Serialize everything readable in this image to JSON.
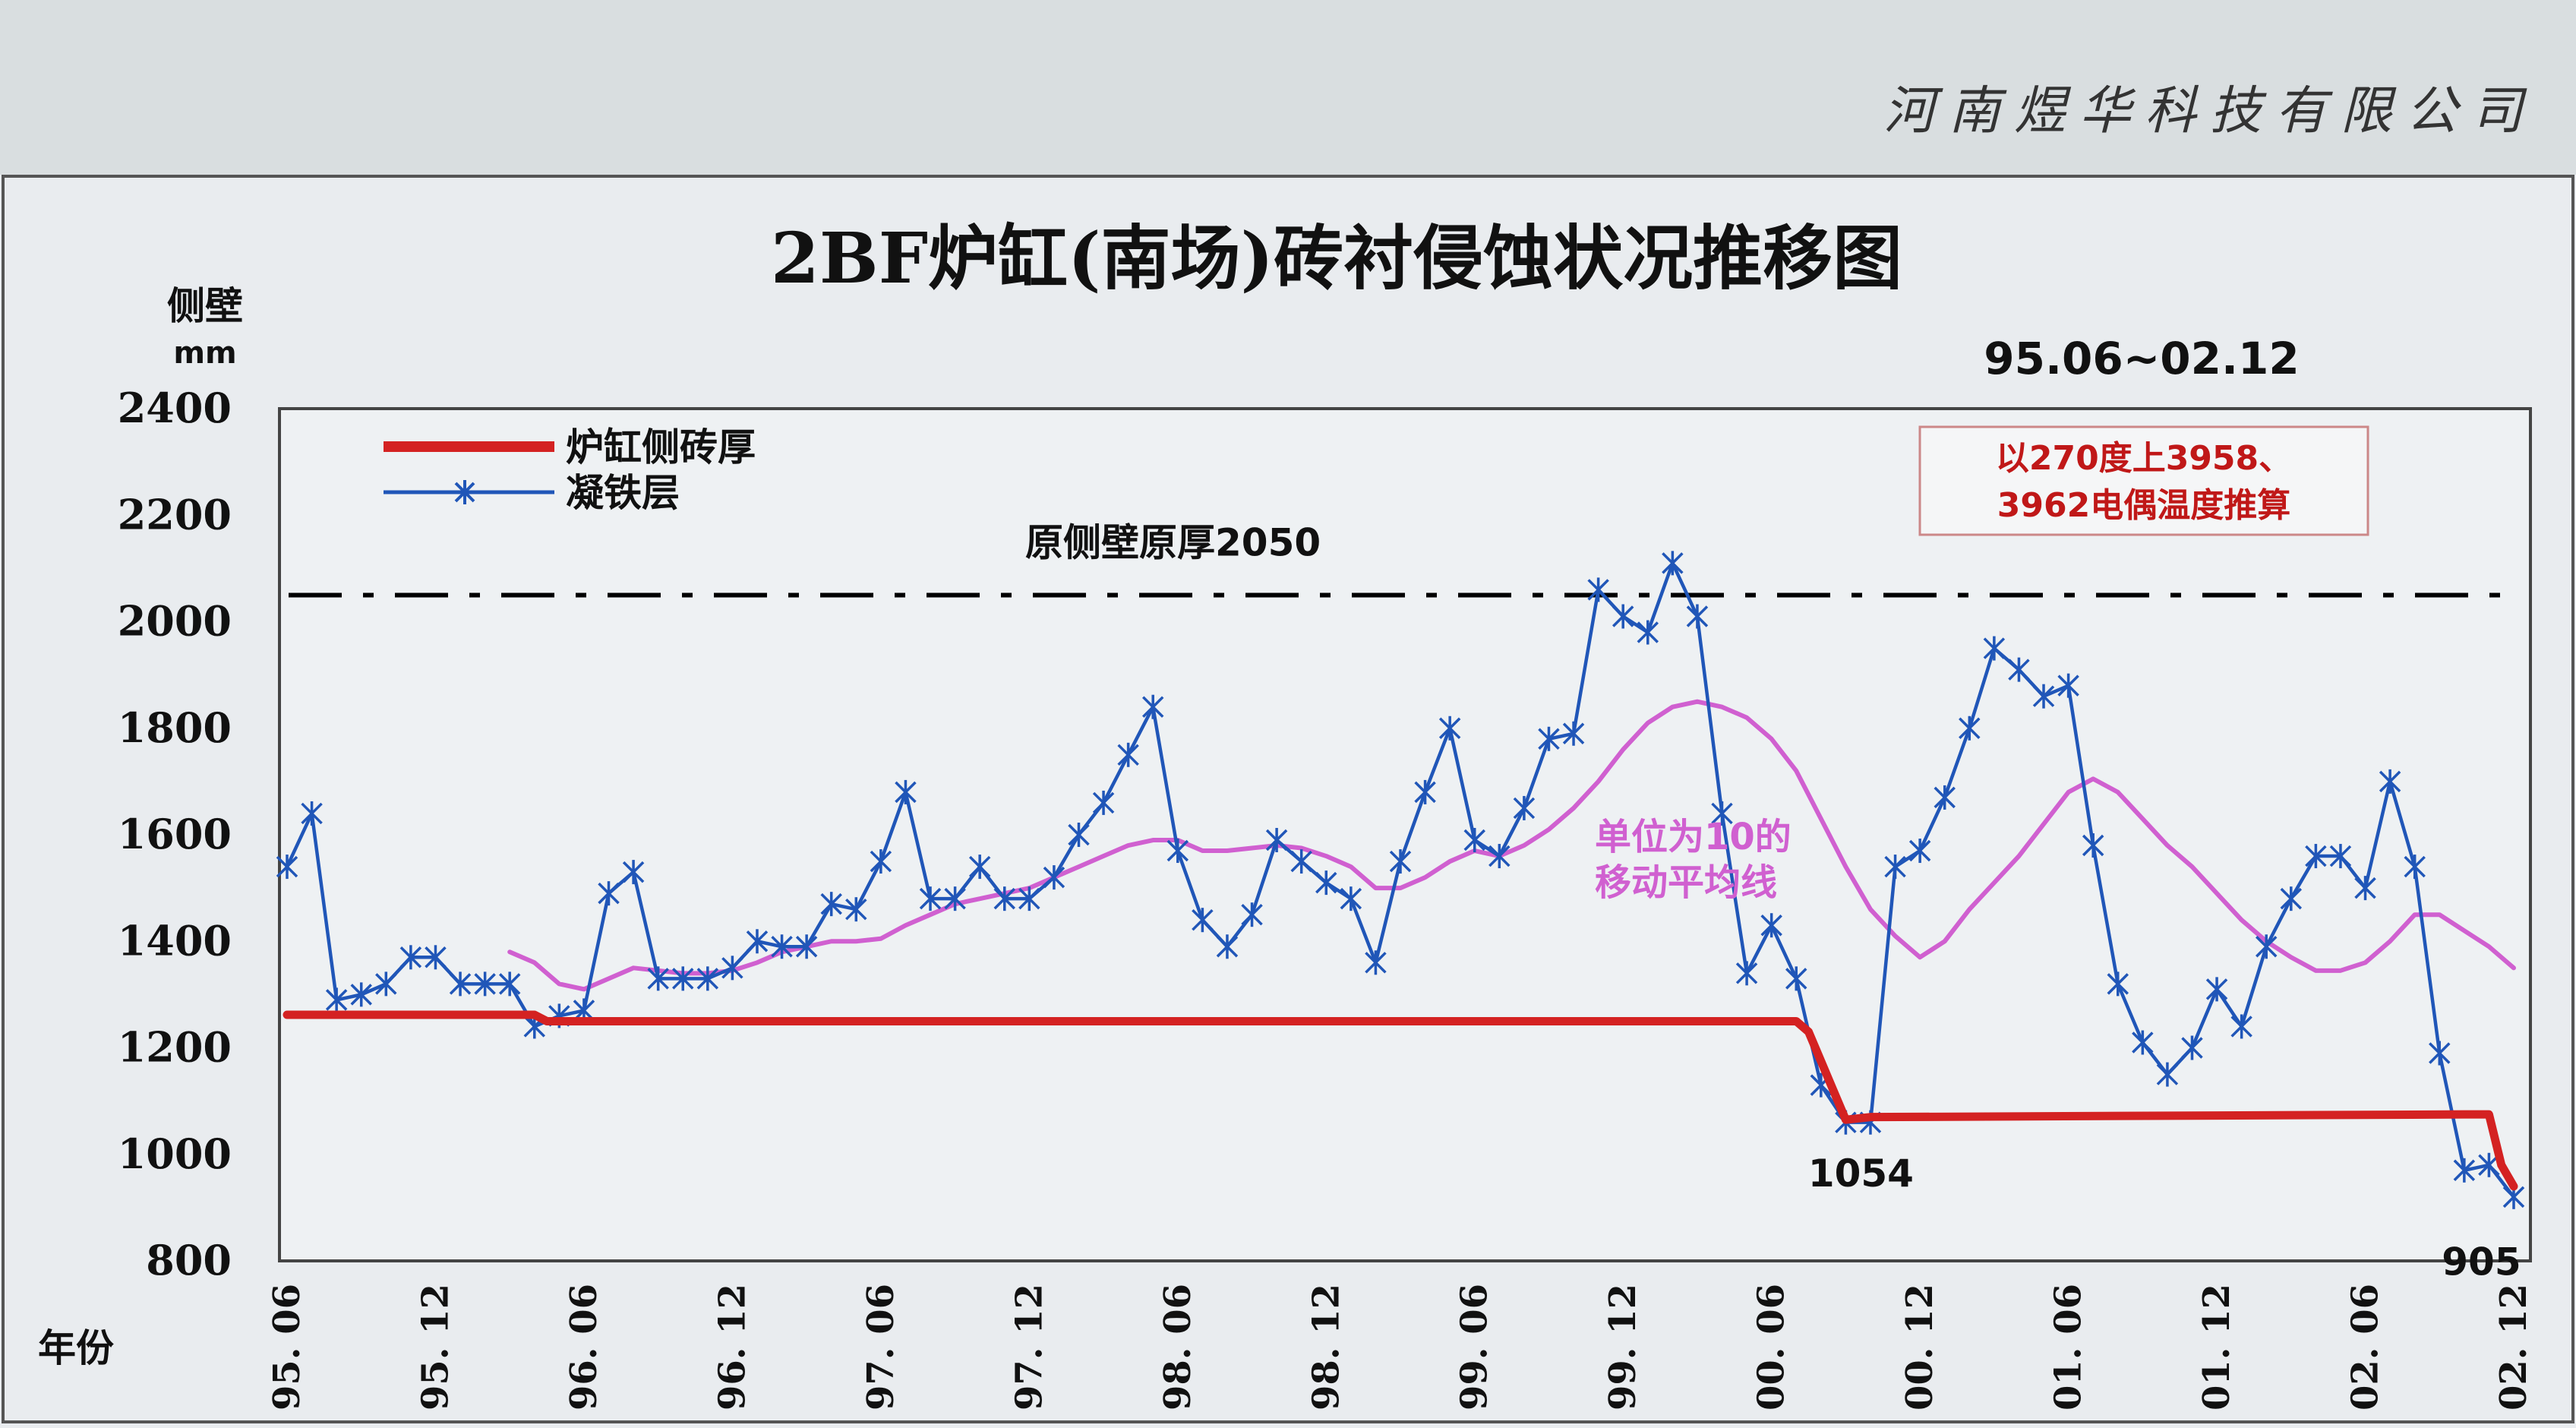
{
  "header": {
    "company": "河南煜华科技有限公司"
  },
  "chart_data": {
    "type": "line",
    "title": "2BF炉缸(南场)砖衬侵蚀状况推移图",
    "subtitle": "95.06~02.12",
    "ylabel": "侧壁",
    "yunit": "mm",
    "xlabel": "年份",
    "ylim": [
      800,
      2400
    ],
    "yticks": [
      "2400",
      "2200",
      "2000",
      "1800",
      "1600",
      "1400",
      "1200",
      "1000",
      "800"
    ],
    "xlim": [
      0,
      90
    ],
    "xticks": [
      {
        "pos": 0,
        "label": "95. 06"
      },
      {
        "pos": 6,
        "label": "95. 12"
      },
      {
        "pos": 12,
        "label": "96. 06"
      },
      {
        "pos": 18,
        "label": "96. 12"
      },
      {
        "pos": 24,
        "label": "97. 06"
      },
      {
        "pos": 30,
        "label": "97. 12"
      },
      {
        "pos": 36,
        "label": "98. 06"
      },
      {
        "pos": 42,
        "label": "98. 12"
      },
      {
        "pos": 48,
        "label": "99. 06"
      },
      {
        "pos": 54,
        "label": "99. 12"
      },
      {
        "pos": 60,
        "label": "00. 06"
      },
      {
        "pos": 66,
        "label": "00. 12"
      },
      {
        "pos": 72,
        "label": "01. 06"
      },
      {
        "pos": 78,
        "label": "01. 12"
      },
      {
        "pos": 84,
        "label": "02. 06"
      },
      {
        "pos": 90,
        "label": "02. 12"
      }
    ],
    "legend": {
      "placement": "top-left",
      "items": [
        {
          "name": "炉缸侧砖厚",
          "color": "#d42222"
        },
        {
          "name": "凝铁层",
          "color": "#2056b8"
        }
      ]
    },
    "reference": {
      "value": 2050,
      "label": "原侧壁原厚2050",
      "color": "#000000"
    },
    "note_box": {
      "line1": "以270度上3958、",
      "line2": "3962电偶温度推算",
      "color": "#c01818"
    },
    "ma_label": {
      "line1": "单位为10的",
      "line2": "移动平均线",
      "color": "#d060d0"
    },
    "point_labels": [
      {
        "x": 63,
        "y": 1054,
        "text": "1054"
      },
      {
        "x": 89,
        "y": 905,
        "text": "905"
      }
    ],
    "series": [
      {
        "name": "炉缸侧砖厚",
        "color": "#d42222",
        "x": [
          0,
          10,
          10.5,
          61,
          61.5,
          62.5,
          63,
          64,
          88,
          89,
          89.5,
          90
        ],
        "y": [
          1262,
          1262,
          1250,
          1250,
          1230,
          1120,
          1065,
          1070,
          1075,
          1075,
          980,
          940
        ]
      },
      {
        "name": "凝铁层",
        "color": "#2056b8",
        "x": [
          0,
          1,
          2,
          3,
          4,
          5,
          6,
          7,
          8,
          9,
          10,
          11,
          12,
          13,
          14,
          15,
          16,
          17,
          18,
          19,
          20,
          21,
          22,
          23,
          24,
          25,
          26,
          27,
          28,
          29,
          30,
          31,
          32,
          33,
          34,
          35,
          36,
          37,
          38,
          39,
          40,
          41,
          42,
          43,
          44,
          45,
          46,
          47,
          48,
          49,
          50,
          51,
          52,
          53,
          54,
          55,
          56,
          57,
          58,
          59,
          60,
          61,
          62,
          63,
          64,
          65,
          66,
          67,
          68,
          69,
          70,
          71,
          72,
          73,
          74,
          75,
          76,
          77,
          78,
          79,
          80,
          81,
          82,
          83,
          84,
          85,
          86,
          87,
          88,
          89,
          90
        ],
        "y": [
          1540,
          1640,
          1290,
          1300,
          1320,
          1370,
          1370,
          1320,
          1320,
          1320,
          1240,
          1260,
          1270,
          1490,
          1530,
          1330,
          1330,
          1330,
          1350,
          1400,
          1390,
          1390,
          1470,
          1460,
          1550,
          1680,
          1480,
          1480,
          1540,
          1480,
          1480,
          1520,
          1600,
          1660,
          1750,
          1840,
          1570,
          1440,
          1390,
          1450,
          1590,
          1550,
          1510,
          1480,
          1360,
          1550,
          1680,
          1800,
          1590,
          1560,
          1650,
          1780,
          1790,
          2060,
          2010,
          1980,
          2110,
          2010,
          1640,
          1340,
          1430,
          1330,
          1130,
          1060,
          1060,
          1540,
          1570,
          1670,
          1800,
          1950,
          1910,
          1860,
          1880,
          1580,
          1320,
          1210,
          1150,
          1200,
          1310,
          1240,
          1390,
          1480,
          1560,
          1560,
          1500,
          1700,
          1540,
          1190,
          970,
          980,
          920
        ]
      },
      {
        "name": "单位为10的移动平均线",
        "color": "#d060d0",
        "x": [
          9,
          10,
          11,
          12,
          13,
          14,
          15,
          16,
          17,
          18,
          19,
          20,
          21,
          22,
          23,
          24,
          25,
          26,
          27,
          28,
          29,
          30,
          31,
          32,
          33,
          34,
          35,
          36,
          37,
          38,
          39,
          40,
          41,
          42,
          43,
          44,
          45,
          46,
          47,
          48,
          49,
          50,
          51,
          52,
          53,
          54,
          55,
          56,
          57,
          58,
          59,
          60,
          61,
          62,
          63,
          64,
          65,
          66,
          67,
          68,
          69,
          70,
          71,
          72,
          73,
          74,
          75,
          76,
          77,
          78,
          79,
          80,
          81,
          82,
          83,
          84,
          85,
          86,
          87,
          88,
          89,
          90
        ],
        "y": [
          1380,
          1360,
          1320,
          1310,
          1330,
          1350,
          1345,
          1340,
          1340,
          1345,
          1360,
          1380,
          1390,
          1400,
          1400,
          1405,
          1430,
          1450,
          1470,
          1480,
          1490,
          1500,
          1520,
          1540,
          1560,
          1580,
          1590,
          1590,
          1570,
          1570,
          1575,
          1580,
          1575,
          1560,
          1540,
          1500,
          1500,
          1520,
          1550,
          1570,
          1560,
          1580,
          1610,
          1650,
          1700,
          1760,
          1810,
          1840,
          1850,
          1840,
          1820,
          1780,
          1720,
          1630,
          1540,
          1460,
          1410,
          1370,
          1400,
          1460,
          1510,
          1560,
          1620,
          1680,
          1705,
          1680,
          1630,
          1580,
          1540,
          1490,
          1440,
          1400,
          1370,
          1345,
          1345,
          1360,
          1400,
          1450,
          1450,
          1420,
          1390,
          1350
        ]
      }
    ]
  }
}
